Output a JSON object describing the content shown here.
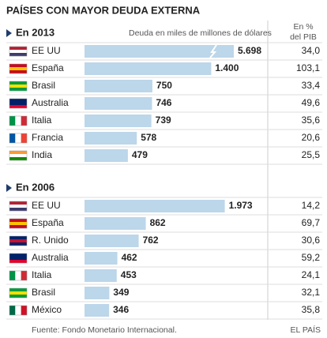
{
  "title": "PAÍSES CON MAYOR DEUDA EXTERNA",
  "pib_header": [
    "En %",
    "del PIB"
  ],
  "source": "Fuente: Fondo Monetario Internacional.",
  "brand": "EL PAÍS",
  "chart_data": [
    {
      "type": "bar",
      "title": "En 2013",
      "axis_label": "Deuda en miles de millones de dólares",
      "categories": [
        "EE UU",
        "España",
        "Brasil",
        "Australia",
        "Italia",
        "Francia",
        "India"
      ],
      "values": [
        5698,
        1400,
        750,
        746,
        739,
        578,
        479
      ],
      "value_labels": [
        "5.698",
        "1.400",
        "750",
        "746",
        "739",
        "578",
        "479"
      ],
      "pib": [
        "34,0",
        "103,1",
        "33,4",
        "49,6",
        "35,6",
        "20,6",
        "25,5"
      ],
      "xlim": [
        0,
        1650
      ],
      "axis_break": true,
      "color": "#bcd6ea"
    },
    {
      "type": "bar",
      "title": "En 2006",
      "categories": [
        "EE UU",
        "España",
        "R. Unido",
        "Australia",
        "Italia",
        "Brasil",
        "México"
      ],
      "values": [
        1973,
        862,
        762,
        462,
        453,
        349,
        346
      ],
      "value_labels": [
        "1.973",
        "862",
        "762",
        "462",
        "453",
        "349",
        "346"
      ],
      "pib": [
        "14,2",
        "69,7",
        "30,6",
        "59,2",
        "24,1",
        "32,1",
        "35,8"
      ],
      "xlim": [
        0,
        2100
      ],
      "axis_break": false,
      "color": "#bcd6ea"
    }
  ]
}
